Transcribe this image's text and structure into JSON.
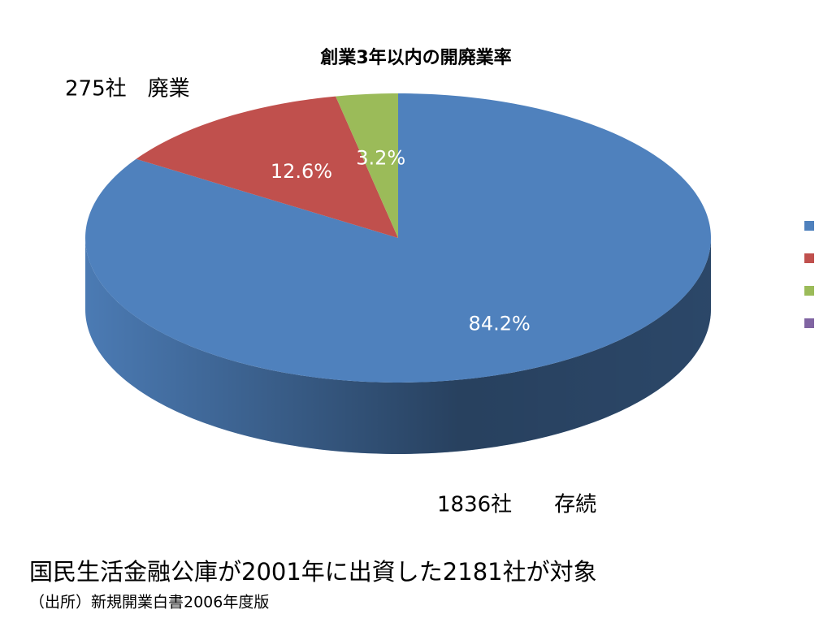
{
  "chart_data": {
    "type": "pie",
    "title": "創業3年以内の開廃業率",
    "categories": [
      null,
      null,
      null,
      null
    ],
    "values": [
      84.2,
      12.6,
      3.2,
      0
    ],
    "value_labels": [
      "84.2%",
      "12.6%",
      "3.2%",
      null
    ],
    "colors": [
      "#4f81bd",
      "#c0504d",
      "#9bbb59",
      "#8064a2"
    ],
    "legend": "right",
    "annotations": [
      "275社　廃業",
      "1836社　　存続"
    ]
  },
  "footnotes": [
    "国民生活金融公庫が2001年に出資した2181社が対象",
    "（出所）新規開業白書2006年度版"
  ]
}
